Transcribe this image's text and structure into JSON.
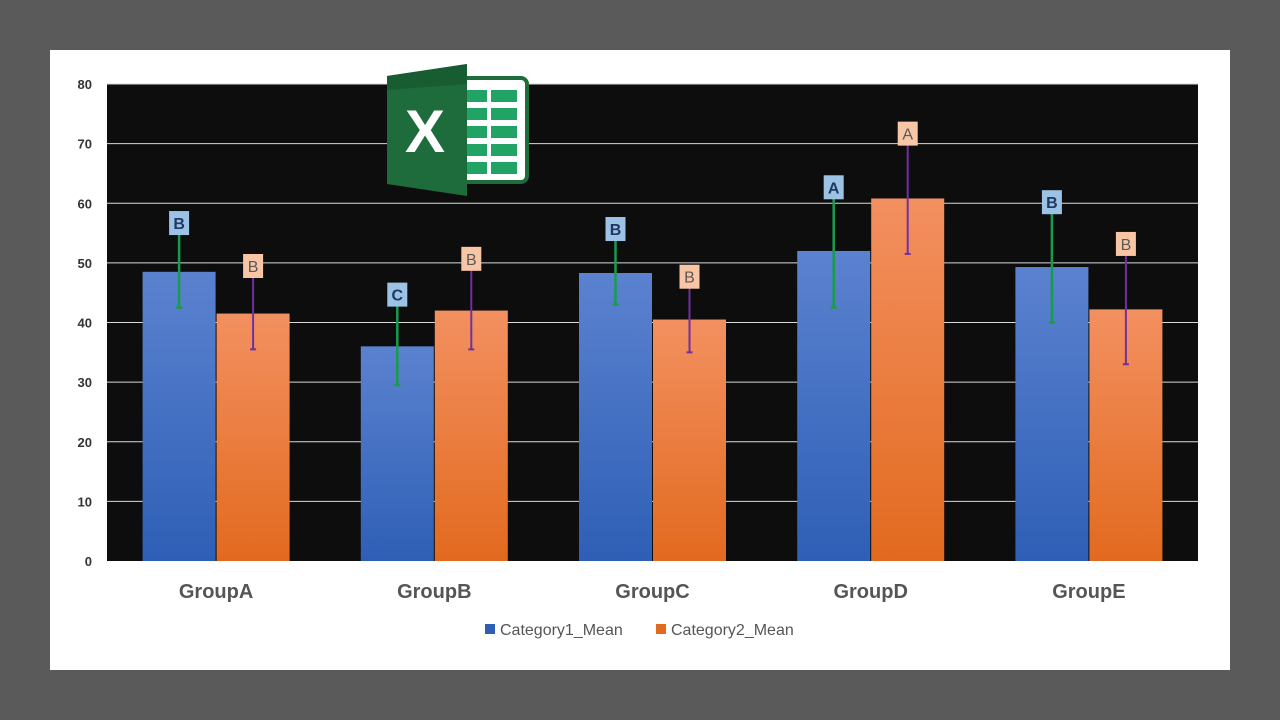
{
  "chart_data": {
    "type": "bar",
    "categories": [
      "GroupA",
      "GroupB",
      "GroupC",
      "GroupD",
      "GroupE"
    ],
    "ylim": [
      0,
      80
    ],
    "yticks": [
      0,
      10,
      20,
      30,
      40,
      50,
      60,
      70,
      80
    ],
    "grid": true,
    "legend_position": "bottom",
    "plot_background": "#0d0d0d",
    "series": [
      {
        "name": "Category1_Mean",
        "values": [
          48.5,
          36,
          48.3,
          52,
          49.3
        ],
        "error_low": [
          42.5,
          29.5,
          43,
          42.5,
          40
        ],
        "error_high": [
          55,
          43,
          54,
          61,
          58.5
        ],
        "significance": [
          "B",
          "C",
          "B",
          "A",
          "B"
        ],
        "color_top": "#5b82cf",
        "color_bottom": "#2e5fb6",
        "error_color": "#1a9a4e",
        "label_bg": "#9cc3e5",
        "label_color": "#1f3864"
      },
      {
        "name": "Category2_Mean",
        "values": [
          41.5,
          42,
          40.5,
          60.8,
          42.2
        ],
        "error_low": [
          35.5,
          35.5,
          35,
          51.5,
          33
        ],
        "error_high": [
          47.8,
          49,
          46,
          70,
          51.5
        ],
        "significance": [
          "B",
          "B",
          "B",
          "A",
          "B"
        ],
        "color_top": "#f39060",
        "color_bottom": "#e26a1f",
        "error_color": "#7030a0",
        "label_bg": "#f8c6a4",
        "label_color": "#595959"
      }
    ]
  },
  "logo": {
    "name": "excel-logo-icon",
    "letter": "X",
    "color_dark": "#1e6b3c",
    "color_light": "#21a366"
  }
}
